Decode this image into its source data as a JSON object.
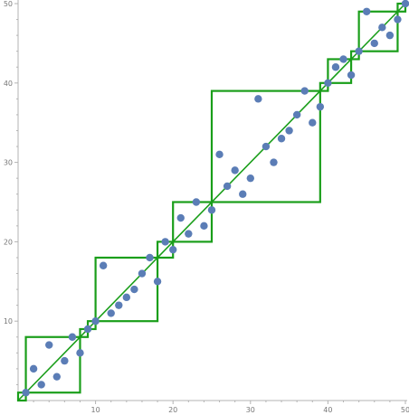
{
  "chart_data": {
    "type": "scatter",
    "title": "",
    "xlabel": "",
    "ylabel": "",
    "xlim": [
      0,
      50
    ],
    "ylim": [
      0,
      50
    ],
    "grid": false,
    "x_ticks": [
      10,
      20,
      30,
      40,
      50
    ],
    "y_ticks": [
      10,
      20,
      30,
      40,
      50
    ],
    "x_tick_labels": [
      "10",
      "20",
      "30",
      "40",
      "50"
    ],
    "y_tick_labels": [
      "10",
      "20",
      "30",
      "40",
      "50"
    ],
    "colors": {
      "points": "#5b7db6",
      "boxes": "#1a9e1a",
      "diagonal": "#1a9e1a",
      "axis": "#b3b3b3",
      "tick_label": "#777777"
    },
    "points": [
      [
        1,
        1
      ],
      [
        2,
        4
      ],
      [
        3,
        2
      ],
      [
        4,
        7
      ],
      [
        5,
        3
      ],
      [
        6,
        5
      ],
      [
        7,
        8
      ],
      [
        8,
        6
      ],
      [
        9,
        9
      ],
      [
        10,
        10
      ],
      [
        11,
        17
      ],
      [
        12,
        11
      ],
      [
        13,
        12
      ],
      [
        14,
        13
      ],
      [
        15,
        14
      ],
      [
        16,
        16
      ],
      [
        17,
        18
      ],
      [
        18,
        15
      ],
      [
        19,
        20
      ],
      [
        20,
        19
      ],
      [
        21,
        23
      ],
      [
        22,
        21
      ],
      [
        23,
        25
      ],
      [
        24,
        22
      ],
      [
        25,
        24
      ],
      [
        26,
        31
      ],
      [
        27,
        27
      ],
      [
        28,
        29
      ],
      [
        29,
        26
      ],
      [
        30,
        28
      ],
      [
        31,
        38
      ],
      [
        32,
        32
      ],
      [
        33,
        30
      ],
      [
        34,
        33
      ],
      [
        35,
        34
      ],
      [
        36,
        36
      ],
      [
        37,
        39
      ],
      [
        38,
        35
      ],
      [
        39,
        37
      ],
      [
        40,
        40
      ],
      [
        41,
        42
      ],
      [
        42,
        43
      ],
      [
        43,
        41
      ],
      [
        44,
        44
      ],
      [
        45,
        49
      ],
      [
        46,
        45
      ],
      [
        47,
        47
      ],
      [
        48,
        46
      ],
      [
        49,
        48
      ],
      [
        50,
        50
      ]
    ],
    "diagonal": {
      "from": [
        0,
        0
      ],
      "to": [
        50,
        50
      ]
    },
    "boxes": [
      {
        "x": [
          0,
          1
        ],
        "y": [
          0,
          1
        ]
      },
      {
        "x": [
          1,
          8
        ],
        "y": [
          1,
          8
        ]
      },
      {
        "x": [
          8,
          9
        ],
        "y": [
          8,
          9
        ]
      },
      {
        "x": [
          9,
          10
        ],
        "y": [
          9,
          10
        ]
      },
      {
        "x": [
          10,
          18
        ],
        "y": [
          10,
          18
        ]
      },
      {
        "x": [
          18,
          20
        ],
        "y": [
          18,
          20
        ]
      },
      {
        "x": [
          20,
          25
        ],
        "y": [
          20,
          25
        ]
      },
      {
        "x": [
          25,
          39
        ],
        "y": [
          25,
          39
        ]
      },
      {
        "x": [
          39,
          40
        ],
        "y": [
          39,
          40
        ]
      },
      {
        "x": [
          40,
          43
        ],
        "y": [
          40,
          43
        ]
      },
      {
        "x": [
          43,
          44
        ],
        "y": [
          43,
          44
        ]
      },
      {
        "x": [
          44,
          49
        ],
        "y": [
          44,
          49
        ]
      },
      {
        "x": [
          49,
          50
        ],
        "y": [
          49,
          50
        ]
      }
    ]
  }
}
